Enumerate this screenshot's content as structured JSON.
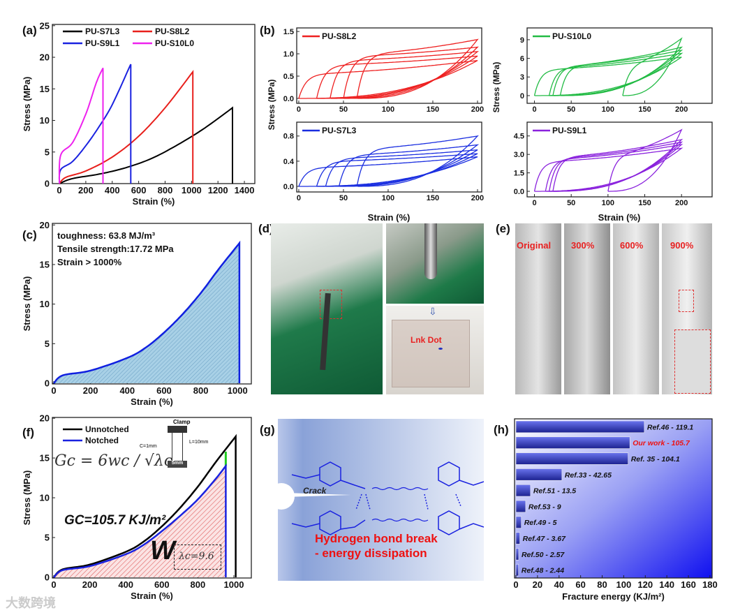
{
  "panel_labels": [
    "(a)",
    "(b)",
    "(c)",
    "(d)",
    "(e)",
    "(f)",
    "(g)",
    "(h)"
  ],
  "watermark": "大数跨境",
  "photos": {
    "d_label": "Lnk Dot",
    "e_labels": [
      "Original",
      "300%",
      "600%",
      "900%"
    ]
  },
  "diagram_g": {
    "crack_label": "Crack",
    "caption_line1": "Hydrogen bond break",
    "caption_line2": "- energy dissipation"
  },
  "chart_data": [
    {
      "id": "a",
      "type": "line",
      "xlabel": "Strain (%)",
      "ylabel": "Stress (MPa)",
      "xticks": [
        0,
        200,
        400,
        600,
        800,
        1000,
        1200,
        1400
      ],
      "yticks": [
        0,
        5,
        10,
        15,
        20,
        25
      ],
      "xlim": [
        0,
        1400
      ],
      "ylim": [
        0,
        25
      ],
      "legend": "top-left",
      "series": [
        {
          "name": "PU-S7L3",
          "color": "#000000",
          "points": [
            [
              0,
              0
            ],
            [
              100,
              0.8
            ],
            [
              300,
              1.5
            ],
            [
              500,
              2.5
            ],
            [
              700,
              4
            ],
            [
              900,
              6.2
            ],
            [
              1100,
              8.8
            ],
            [
              1310,
              12
            ],
            [
              1310,
              0
            ]
          ]
        },
        {
          "name": "PU-S8L2",
          "color": "#e8201c",
          "points": [
            [
              0,
              0
            ],
            [
              50,
              1
            ],
            [
              200,
              2
            ],
            [
              400,
              4.2
            ],
            [
              600,
              7.5
            ],
            [
              800,
              12
            ],
            [
              1010,
              17.7
            ],
            [
              1010,
              0
            ]
          ]
        },
        {
          "name": "PU-S9L1",
          "color": "#1a22e0",
          "points": [
            [
              0,
              0
            ],
            [
              10,
              2.2
            ],
            [
              100,
              3.5
            ],
            [
              200,
              6
            ],
            [
              300,
              9
            ],
            [
              400,
              12.5
            ],
            [
              540,
              18.9
            ],
            [
              540,
              0
            ]
          ]
        },
        {
          "name": "PU-S10L0",
          "color": "#ee22ee",
          "points": [
            [
              0,
              0
            ],
            [
              10,
              4.5
            ],
            [
              100,
              6.5
            ],
            [
              200,
              11
            ],
            [
              280,
              16
            ],
            [
              330,
              18.3
            ],
            [
              330,
              0
            ]
          ]
        }
      ]
    },
    {
      "id": "b1",
      "type": "line",
      "name": "PU-S8L2",
      "color": "#ee2020",
      "ylabel": "Stress (MPa)",
      "xlabel": "",
      "xticks": [
        0,
        50,
        100,
        150,
        200
      ],
      "yticks": [
        "0.0",
        "0.5",
        "1.0",
        "1.5"
      ],
      "xlim": [
        0,
        200
      ],
      "ylim": [
        0,
        1.5
      ],
      "cycles": {
        "max_strain": 200,
        "peak_stress": [
          0.85,
          0.95,
          1.05,
          1.15,
          1.32
        ],
        "plateau": [
          0.55,
          0.75,
          0.85,
          0.95,
          1.0
        ],
        "residual_strain": [
          0,
          20,
          35,
          50,
          65
        ]
      }
    },
    {
      "id": "b2",
      "type": "line",
      "name": "PU-S7L3",
      "color": "#1a2ee0",
      "ylabel": "Stress (MPa)",
      "xlabel": "Strain (%)",
      "xticks": [
        0,
        50,
        100,
        150,
        200
      ],
      "yticks": [
        "0.0",
        "0.4",
        "0.8"
      ],
      "xlim": [
        0,
        200
      ],
      "ylim": [
        0,
        0.8
      ],
      "cycles": {
        "max_strain": 200,
        "peak_stress": [
          0.47,
          0.52,
          0.58,
          0.66,
          0.8
        ],
        "plateau": [
          0.3,
          0.4,
          0.45,
          0.5,
          0.6
        ],
        "residual_strain": [
          0,
          20,
          30,
          45,
          65
        ]
      }
    },
    {
      "id": "b3",
      "type": "line",
      "name": "PU-S10L0",
      "color": "#22bb44",
      "ylabel": "Stress (MPa)",
      "xlabel": "",
      "xticks": [
        0,
        50,
        100,
        150,
        200
      ],
      "yticks": [
        "0",
        "3",
        "6",
        "9"
      ],
      "xlim": [
        0,
        200
      ],
      "ylim": [
        0,
        9
      ],
      "cycles": {
        "max_strain": 200,
        "peak_stress": [
          6.2,
          6.8,
          7.3,
          7.8,
          9.2
        ],
        "plateau": [
          4.2,
          4.5,
          4.7,
          4.8,
          4.9
        ],
        "residual_strain": [
          0,
          20,
          25,
          35,
          120
        ]
      }
    },
    {
      "id": "b4",
      "type": "line",
      "name": "PU-S9L1",
      "color": "#8a22dd",
      "ylabel": "Stress (MPa)",
      "xlabel": "Strain (%)",
      "xticks": [
        0,
        50,
        100,
        150,
        200
      ],
      "yticks": [
        "0.0",
        "1.5",
        "3.0",
        "4.5"
      ],
      "xlim": [
        0,
        200
      ],
      "ylim": [
        0,
        4.5
      ],
      "cycles": {
        "max_strain": 200,
        "peak_stress": [
          3.5,
          3.8,
          4.0,
          4.2,
          5.0
        ],
        "plateau": [
          2.4,
          2.6,
          2.7,
          2.8,
          2.9
        ],
        "residual_strain": [
          0,
          15,
          20,
          25,
          100
        ]
      }
    },
    {
      "id": "c",
      "type": "area",
      "xlabel": "Strain (%)",
      "ylabel": "Stress (MPa)",
      "xticks": [
        0,
        200,
        400,
        600,
        800,
        1000
      ],
      "yticks": [
        0,
        5,
        10,
        15,
        20
      ],
      "xlim": [
        0,
        1000
      ],
      "ylim": [
        0,
        20
      ],
      "annotations": [
        "toughness: 63.8 MJ/m³",
        "Tensile strength:17.72 MPa",
        "Strain > 1000%"
      ],
      "series": [
        {
          "name": "PU-S8L2",
          "color": "#1020e0",
          "fill": "#9cc8e0",
          "points": [
            [
              0,
              0
            ],
            [
              50,
              1
            ],
            [
              200,
              1.6
            ],
            [
              400,
              3.2
            ],
            [
              500,
              4.5
            ],
            [
              600,
              6.4
            ],
            [
              700,
              8.7
            ],
            [
              800,
              11.4
            ],
            [
              900,
              14.5
            ],
            [
              1010,
              17.7
            ],
            [
              1010,
              0
            ]
          ]
        }
      ]
    },
    {
      "id": "f",
      "type": "line",
      "xlabel": "Strain (%)",
      "ylabel": "Stress (MPa)",
      "xticks": [
        0,
        200,
        400,
        600,
        800,
        1000
      ],
      "yticks": [
        0,
        5,
        10,
        15,
        20
      ],
      "xlim": [
        0,
        1000
      ],
      "ylim": [
        0,
        20
      ],
      "legend": "top-left",
      "annotations": {
        "gc_value": "GC=105.7 KJ/m²",
        "formula": "Gc = 6wc / √λc",
        "w_label": "W",
        "lambda_label": "λc=9.6",
        "clamp": "Clamp",
        "c_dim": "C=1mm",
        "l_dim": "L=10mm",
        "w_dim": "5mm"
      },
      "series": [
        {
          "name": "Unnotched",
          "color": "#000000",
          "points": [
            [
              0,
              0
            ],
            [
              50,
              1
            ],
            [
              200,
              1.6
            ],
            [
              400,
              3.2
            ],
            [
              500,
              4.5
            ],
            [
              600,
              6.4
            ],
            [
              700,
              8.7
            ],
            [
              800,
              11.4
            ],
            [
              900,
              14.5
            ],
            [
              1010,
              17.7
            ],
            [
              1010,
              0
            ]
          ]
        },
        {
          "name": "Notched",
          "color": "#1a22e0",
          "points": [
            [
              0,
              0
            ],
            [
              50,
              0.9
            ],
            [
              200,
              1.4
            ],
            [
              400,
              2.9
            ],
            [
              500,
              4.1
            ],
            [
              600,
              5.8
            ],
            [
              700,
              7.7
            ],
            [
              800,
              9.8
            ],
            [
              900,
              12.4
            ],
            [
              955,
              14
            ],
            [
              955,
              0
            ]
          ]
        }
      ]
    },
    {
      "id": "h",
      "type": "bar",
      "orientation": "horizontal",
      "xlabel": "Fracture energy (KJ/m²)",
      "xticks": [
        0,
        20,
        40,
        60,
        80,
        100,
        120,
        140,
        160,
        180
      ],
      "xlim": [
        0,
        180
      ],
      "categories": [
        "Ref.46",
        "Our work",
        "Ref. 35",
        "Ref.33",
        "Ref.51",
        "Ref.53",
        "Ref.49",
        "Ref.47",
        "Ref.50",
        "Ref.48"
      ],
      "values": [
        119.1,
        105.7,
        104.1,
        42.65,
        13.5,
        9,
        5,
        3.67,
        2.57,
        2.44
      ],
      "labels": [
        "Ref.46 - 119.1",
        "Our work - 105.7",
        "Ref. 35 - 104.1",
        "Ref.33 - 42.65",
        "Ref.51 - 13.5",
        "Ref.53 - 9",
        "Ref.49 - 5",
        "Ref.47 - 3.67",
        "Ref.50 - 2.57",
        "Ref.48 - 2.44"
      ],
      "highlight": "Our work",
      "highlight_color": "#ee1111",
      "bar_color": "#3a44d8"
    }
  ]
}
